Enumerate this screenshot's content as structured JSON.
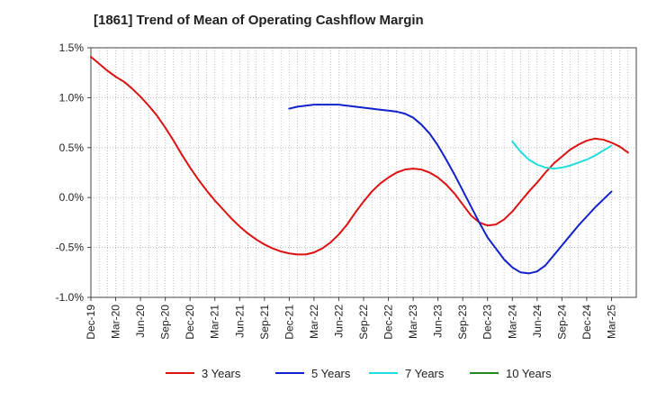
{
  "chart_data": {
    "type": "line",
    "title": "[1861]  Trend of Mean of Operating Cashflow Margin",
    "xlabel": "",
    "ylabel": "",
    "ylim": [
      -1.0,
      1.5
    ],
    "y_ticks": [
      1.5,
      1.0,
      0.5,
      0.0,
      -0.5,
      -1.0
    ],
    "y_tick_labels": [
      "1.5%",
      "1.0%",
      "0.5%",
      "0.0%",
      "-0.5%",
      "-1.0%"
    ],
    "x_tick_labels": [
      "Dec-19",
      "Mar-20",
      "Jun-20",
      "Sep-20",
      "Dec-20",
      "Mar-21",
      "Jun-21",
      "Sep-21",
      "Dec-21",
      "Mar-22",
      "Jun-22",
      "Sep-22",
      "Dec-22",
      "Mar-23",
      "Jun-23",
      "Sep-23",
      "Dec-23",
      "Mar-24",
      "Jun-24",
      "Sep-24",
      "Dec-24",
      "Mar-25"
    ],
    "grid": "vertical dotted, horizontal dotted",
    "legend_position": "bottom",
    "series": [
      {
        "name": "3 Years",
        "color": "#dd1111",
        "points": [
          [
            "2019-12",
            1.41
          ],
          [
            "2020-01",
            1.34
          ],
          [
            "2020-02",
            1.27
          ],
          [
            "2020-03",
            1.21
          ],
          [
            "2020-04",
            1.16
          ],
          [
            "2020-05",
            1.09
          ],
          [
            "2020-06",
            1.01
          ],
          [
            "2020-07",
            0.92
          ],
          [
            "2020-08",
            0.82
          ],
          [
            "2020-09",
            0.7
          ],
          [
            "2020-10",
            0.57
          ],
          [
            "2020-11",
            0.43
          ],
          [
            "2020-12",
            0.3
          ],
          [
            "2021-01",
            0.18
          ],
          [
            "2021-02",
            0.07
          ],
          [
            "2021-03",
            -0.03
          ],
          [
            "2021-04",
            -0.12
          ],
          [
            "2021-05",
            -0.21
          ],
          [
            "2021-06",
            -0.29
          ],
          [
            "2021-07",
            -0.36
          ],
          [
            "2021-08",
            -0.42
          ],
          [
            "2021-09",
            -0.47
          ],
          [
            "2021-10",
            -0.51
          ],
          [
            "2021-11",
            -0.54
          ],
          [
            "2021-12",
            -0.56
          ],
          [
            "2022-01",
            -0.57
          ],
          [
            "2022-02",
            -0.57
          ],
          [
            "2022-03",
            -0.55
          ],
          [
            "2022-04",
            -0.51
          ],
          [
            "2022-05",
            -0.45
          ],
          [
            "2022-06",
            -0.37
          ],
          [
            "2022-07",
            -0.27
          ],
          [
            "2022-08",
            -0.15
          ],
          [
            "2022-09",
            -0.04
          ],
          [
            "2022-10",
            0.06
          ],
          [
            "2022-11",
            0.14
          ],
          [
            "2022-12",
            0.2
          ],
          [
            "2023-01",
            0.25
          ],
          [
            "2023-02",
            0.28
          ],
          [
            "2023-03",
            0.29
          ],
          [
            "2023-04",
            0.28
          ],
          [
            "2023-05",
            0.25
          ],
          [
            "2023-06",
            0.2
          ],
          [
            "2023-07",
            0.13
          ],
          [
            "2023-08",
            0.04
          ],
          [
            "2023-09",
            -0.07
          ],
          [
            "2023-10",
            -0.18
          ],
          [
            "2023-11",
            -0.25
          ],
          [
            "2023-12",
            -0.28
          ],
          [
            "2024-01",
            -0.27
          ],
          [
            "2024-02",
            -0.22
          ],
          [
            "2024-03",
            -0.14
          ],
          [
            "2024-04",
            -0.04
          ],
          [
            "2024-05",
            0.06
          ],
          [
            "2024-06",
            0.15
          ],
          [
            "2024-07",
            0.25
          ],
          [
            "2024-08",
            0.34
          ],
          [
            "2024-09",
            0.41
          ],
          [
            "2024-10",
            0.48
          ],
          [
            "2024-11",
            0.53
          ],
          [
            "2024-12",
            0.57
          ],
          [
            "2025-01",
            0.59
          ],
          [
            "2025-02",
            0.58
          ],
          [
            "2025-03",
            0.55
          ],
          [
            "2025-04",
            0.51
          ],
          [
            "2025-05",
            0.45
          ]
        ]
      },
      {
        "name": "5 Years",
        "color": "#1122cc",
        "points": [
          [
            "2021-12",
            0.89
          ],
          [
            "2022-01",
            0.91
          ],
          [
            "2022-02",
            0.92
          ],
          [
            "2022-03",
            0.93
          ],
          [
            "2022-04",
            0.93
          ],
          [
            "2022-05",
            0.93
          ],
          [
            "2022-06",
            0.93
          ],
          [
            "2022-07",
            0.92
          ],
          [
            "2022-08",
            0.91
          ],
          [
            "2022-09",
            0.9
          ],
          [
            "2022-10",
            0.89
          ],
          [
            "2022-11",
            0.88
          ],
          [
            "2022-12",
            0.87
          ],
          [
            "2023-01",
            0.86
          ],
          [
            "2023-02",
            0.84
          ],
          [
            "2023-03",
            0.8
          ],
          [
            "2023-04",
            0.73
          ],
          [
            "2023-05",
            0.64
          ],
          [
            "2023-06",
            0.52
          ],
          [
            "2023-07",
            0.38
          ],
          [
            "2023-08",
            0.23
          ],
          [
            "2023-09",
            0.07
          ],
          [
            "2023-10",
            -0.09
          ],
          [
            "2023-11",
            -0.25
          ],
          [
            "2023-12",
            -0.4
          ],
          [
            "2024-01",
            -0.51
          ],
          [
            "2024-02",
            -0.62
          ],
          [
            "2024-03",
            -0.7
          ],
          [
            "2024-04",
            -0.75
          ],
          [
            "2024-05",
            -0.76
          ],
          [
            "2024-06",
            -0.74
          ],
          [
            "2024-07",
            -0.68
          ],
          [
            "2024-08",
            -0.58
          ],
          [
            "2024-09",
            -0.48
          ],
          [
            "2024-10",
            -0.38
          ],
          [
            "2024-11",
            -0.28
          ],
          [
            "2024-12",
            -0.19
          ],
          [
            "2025-01",
            -0.1
          ],
          [
            "2025-02",
            -0.02
          ],
          [
            "2025-03",
            0.06
          ]
        ]
      },
      {
        "name": "7 Years",
        "color": "#22dddd",
        "points": [
          [
            "2024-03",
            0.56
          ],
          [
            "2024-04",
            0.46
          ],
          [
            "2024-05",
            0.38
          ],
          [
            "2024-06",
            0.33
          ],
          [
            "2024-07",
            0.3
          ],
          [
            "2024-08",
            0.29
          ],
          [
            "2024-09",
            0.3
          ],
          [
            "2024-10",
            0.32
          ],
          [
            "2024-11",
            0.35
          ],
          [
            "2024-12",
            0.38
          ],
          [
            "2025-01",
            0.42
          ],
          [
            "2025-02",
            0.47
          ],
          [
            "2025-03",
            0.52
          ]
        ]
      },
      {
        "name": "10 Years",
        "color": "#228822",
        "points": []
      }
    ]
  }
}
